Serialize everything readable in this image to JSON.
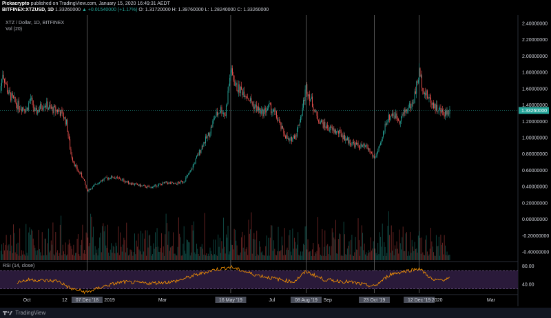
{
  "header": {
    "line1_user": "Pickacrypto",
    "line1_text": "published on TradingView.com, January 15, 2020 16:49:31 AEDT",
    "symbol": "BITFINEX:XTZUSD, 1D",
    "last": "1.33260000",
    "change": "▲ +0.01540000 (+1.17%)",
    "ohlc": "O: 1.31720000 H: 1.39760000 L: 1.28240000 C: 1.33260000"
  },
  "legend": {
    "series": "XTZ / Dollar, 1D, BITFINEX",
    "volume": "Vol (20)"
  },
  "rsi_label": "RSI (14, close)",
  "footer": {
    "brand": "TradingView"
  },
  "colors": {
    "up": "#26a69a",
    "down": "#ef5350",
    "rsi": "#ff9800",
    "rsi_band": "#2a1a3a",
    "price_tag": "#26a69a",
    "background": "#000000"
  },
  "chart_data": [
    {
      "type": "candlestick",
      "title": "XTZ / Dollar, 1D, BITFINEX",
      "x_range": [
        "2018-09-01",
        "2020-03-31"
      ],
      "ylim": [
        -0.5,
        2.5
      ],
      "y_ticks": [
        "2.40000000",
        "2.20000000",
        "2.00000000",
        "1.80000000",
        "1.60000000",
        "1.40000000",
        "1.20000000",
        "1.00000000",
        "0.80000000",
        "0.60000000",
        "0.40000000",
        "0.20000000",
        "0.00000000",
        "-0.20000000",
        "-0.40000000"
      ],
      "y_tick_values": [
        2.4,
        2.2,
        2.0,
        1.8,
        1.6,
        1.4,
        1.2,
        1.0,
        0.8,
        0.6,
        0.4,
        0.2,
        0.0,
        -0.2,
        -0.4
      ],
      "last_price_label": "1.33260000",
      "last_price": 1.3326,
      "x_labels": [
        {
          "label": "Oct",
          "date": "2018-10-01"
        },
        {
          "label": "12",
          "date": "2018-11-12"
        },
        {
          "label": "07 Dec '18",
          "date": "2018-12-07",
          "highlight": true
        },
        {
          "label": "2019",
          "date": "2019-01-01"
        },
        {
          "label": "Mar",
          "date": "2019-03-01"
        },
        {
          "label": "16 May '19",
          "date": "2019-05-16",
          "highlight": true
        },
        {
          "label": "Jul",
          "date": "2019-07-01"
        },
        {
          "label": "08 Aug '19",
          "date": "2019-08-08",
          "highlight": true
        },
        {
          "label": "Sep",
          "date": "2019-09-01"
        },
        {
          "label": "23 Oct '19",
          "date": "2019-10-23",
          "highlight": true
        },
        {
          "label": "12 Dec '19",
          "date": "2019-12-12",
          "highlight": true
        },
        {
          "label": "2020",
          "date": "2020-01-01"
        },
        {
          "label": "Mar",
          "date": "2020-03-01"
        }
      ],
      "vertical_markers": [
        "2018-12-07",
        "2019-05-16",
        "2019-08-08",
        "2019-10-23",
        "2019-12-12"
      ],
      "close_path": [
        [
          "2018-09-01",
          1.55
        ],
        [
          "2018-09-04",
          1.8
        ],
        [
          "2018-09-10",
          1.55
        ],
        [
          "2018-09-20",
          1.4
        ],
        [
          "2018-10-01",
          1.35
        ],
        [
          "2018-10-05",
          1.48
        ],
        [
          "2018-10-10",
          1.3
        ],
        [
          "2018-10-20",
          1.42
        ],
        [
          "2018-10-28",
          1.35
        ],
        [
          "2018-11-05",
          1.33
        ],
        [
          "2018-11-10",
          1.28
        ],
        [
          "2018-11-14",
          1.18
        ],
        [
          "2018-11-19",
          0.8
        ],
        [
          "2018-11-25",
          0.62
        ],
        [
          "2018-12-02",
          0.52
        ],
        [
          "2018-12-07",
          0.35
        ],
        [
          "2018-12-14",
          0.4
        ],
        [
          "2018-12-20",
          0.46
        ],
        [
          "2018-12-28",
          0.5
        ],
        [
          "2019-01-05",
          0.52
        ],
        [
          "2019-01-15",
          0.48
        ],
        [
          "2019-01-25",
          0.44
        ],
        [
          "2019-02-05",
          0.41
        ],
        [
          "2019-02-15",
          0.39
        ],
        [
          "2019-02-25",
          0.42
        ],
        [
          "2019-03-05",
          0.45
        ],
        [
          "2019-03-15",
          0.43
        ],
        [
          "2019-03-25",
          0.47
        ],
        [
          "2019-04-01",
          0.58
        ],
        [
          "2019-04-08",
          0.75
        ],
        [
          "2019-04-15",
          0.92
        ],
        [
          "2019-04-22",
          1.05
        ],
        [
          "2019-04-28",
          1.25
        ],
        [
          "2019-05-05",
          1.35
        ],
        [
          "2019-05-10",
          1.28
        ],
        [
          "2019-05-16",
          1.82
        ],
        [
          "2019-05-22",
          1.62
        ],
        [
          "2019-06-01",
          1.55
        ],
        [
          "2019-06-10",
          1.4
        ],
        [
          "2019-06-20",
          1.3
        ],
        [
          "2019-06-28",
          1.38
        ],
        [
          "2019-07-05",
          1.28
        ],
        [
          "2019-07-12",
          1.1
        ],
        [
          "2019-07-20",
          0.95
        ],
        [
          "2019-07-28",
          1.05
        ],
        [
          "2019-08-03",
          1.3
        ],
        [
          "2019-08-08",
          1.62
        ],
        [
          "2019-08-14",
          1.45
        ],
        [
          "2019-08-20",
          1.25
        ],
        [
          "2019-08-28",
          1.15
        ],
        [
          "2019-09-05",
          1.1
        ],
        [
          "2019-09-15",
          1.05
        ],
        [
          "2019-09-25",
          0.95
        ],
        [
          "2019-10-05",
          0.9
        ],
        [
          "2019-10-15",
          0.88
        ],
        [
          "2019-10-23",
          0.75
        ],
        [
          "2019-10-30",
          0.9
        ],
        [
          "2019-11-05",
          1.2
        ],
        [
          "2019-11-12",
          1.3
        ],
        [
          "2019-11-20",
          1.22
        ],
        [
          "2019-11-28",
          1.35
        ],
        [
          "2019-12-05",
          1.42
        ],
        [
          "2019-12-12",
          1.8
        ],
        [
          "2019-12-18",
          1.55
        ],
        [
          "2019-12-25",
          1.45
        ],
        [
          "2020-01-01",
          1.35
        ],
        [
          "2020-01-08",
          1.3
        ],
        [
          "2020-01-15",
          1.33
        ]
      ]
    },
    {
      "type": "line",
      "title": "RSI (14, close)",
      "ylim": [
        20,
        90
      ],
      "y_ticks": [
        "80.00",
        "40.00"
      ],
      "y_tick_values": [
        80,
        40
      ],
      "band": [
        30,
        70
      ],
      "rsi_path": [
        [
          "2018-09-20",
          45
        ],
        [
          "2018-10-05",
          50
        ],
        [
          "2018-10-20",
          48
        ],
        [
          "2018-11-05",
          47
        ],
        [
          "2018-11-19",
          30
        ],
        [
          "2018-12-07",
          22
        ],
        [
          "2018-12-25",
          35
        ],
        [
          "2019-01-15",
          45
        ],
        [
          "2019-02-15",
          42
        ],
        [
          "2019-03-15",
          46
        ],
        [
          "2019-04-10",
          62
        ],
        [
          "2019-04-28",
          72
        ],
        [
          "2019-05-16",
          78
        ],
        [
          "2019-06-10",
          62
        ],
        [
          "2019-07-05",
          52
        ],
        [
          "2019-07-25",
          45
        ],
        [
          "2019-08-08",
          68
        ],
        [
          "2019-08-28",
          50
        ],
        [
          "2019-09-25",
          45
        ],
        [
          "2019-10-23",
          35
        ],
        [
          "2019-11-10",
          62
        ],
        [
          "2019-12-12",
          75
        ],
        [
          "2019-12-28",
          48
        ],
        [
          "2020-01-15",
          52
        ]
      ]
    }
  ]
}
